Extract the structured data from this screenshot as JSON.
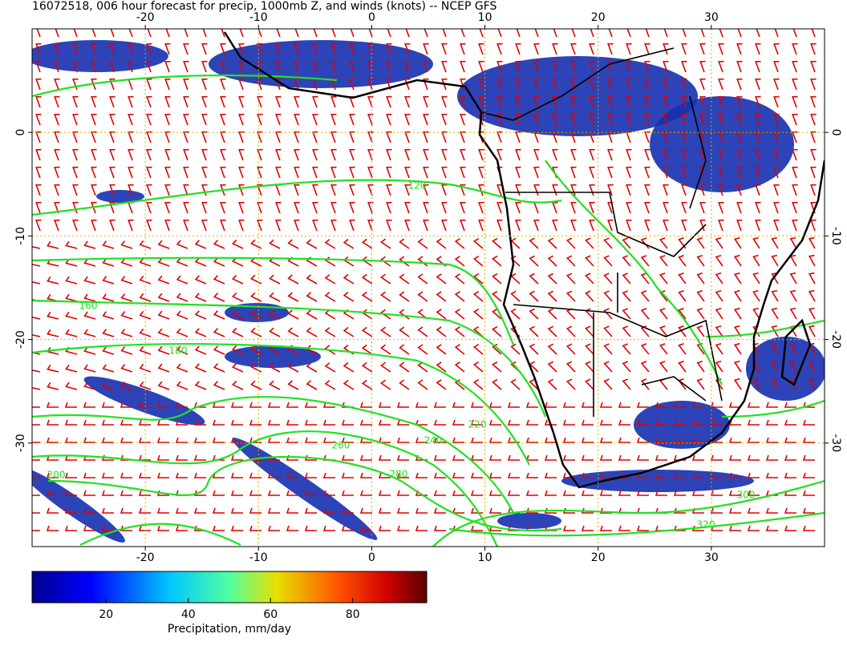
{
  "title": "16072518, 006 hour forecast for precip, 1000mb Z, and winds (knots) -- NCEP GFS",
  "map": {
    "lon_range": [
      -30,
      40
    ],
    "lat_range": [
      -40,
      10
    ],
    "lon_ticks": [
      -20,
      -10,
      0,
      10,
      20,
      30
    ],
    "lat_ticks": [
      0,
      -10,
      -20,
      -30
    ],
    "grid": true
  },
  "contour_levels": [
    120,
    160,
    180,
    200,
    220,
    240,
    260,
    280,
    300,
    320
  ],
  "colorbar": {
    "label": "Precipitation, mm/day",
    "range": [
      2,
      98
    ],
    "ticks": [
      20,
      40,
      60,
      80
    ]
  }
}
